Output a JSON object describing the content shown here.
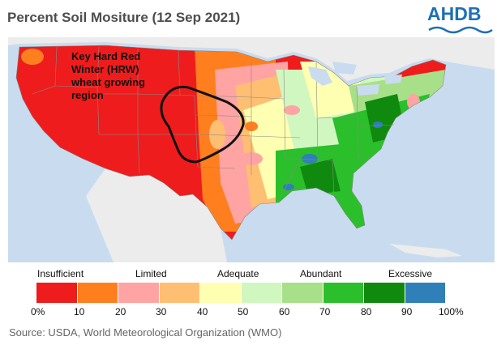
{
  "title": "Percent Soil Mositure (12 Sep 2021)",
  "logo": {
    "text": "AHDB",
    "color": "#1f6fb6"
  },
  "annotation": {
    "lines": [
      "Key Hard Red",
      "Winter (HRW)",
      "wheat growing",
      "region"
    ]
  },
  "legend": {
    "categories": [
      "Insufficient",
      "Limited",
      "Adequate",
      "Abundant",
      "Excessive"
    ],
    "ticks": [
      "0%",
      "10",
      "20",
      "30",
      "40",
      "50",
      "60",
      "70",
      "80",
      "90",
      "100%"
    ],
    "colors": [
      "#ee1c1c",
      "#ff7f1e",
      "#ffa3a3",
      "#ffbf73",
      "#ffffb2",
      "#d0f7c0",
      "#a8e08a",
      "#2bbf2b",
      "#0f8a0f",
      "#2f7fb8"
    ]
  },
  "source": "Source: USDA, World Meteorological Organization (WMO)"
}
